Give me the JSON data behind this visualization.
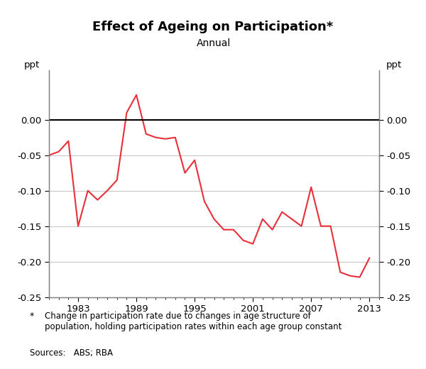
{
  "title": "Effect of Ageing on Participation*",
  "subtitle": "Annual",
  "line_color": "#e8303a",
  "line_width": 1.5,
  "background_color": "#ffffff",
  "ylim": [
    -0.25,
    0.07
  ],
  "yticks": [
    -0.25,
    -0.2,
    -0.15,
    -0.1,
    -0.05,
    0.0
  ],
  "xmin": 1980,
  "xmax": 2014,
  "xticks": [
    1983,
    1989,
    1995,
    2001,
    2007,
    2013
  ],
  "years": [
    1980,
    1981,
    1982,
    1983,
    1984,
    1985,
    1986,
    1987,
    1988,
    1989,
    1990,
    1991,
    1992,
    1993,
    1994,
    1995,
    1996,
    1997,
    1998,
    1999,
    2000,
    2001,
    2002,
    2003,
    2004,
    2005,
    2006,
    2007,
    2008,
    2009,
    2010,
    2011,
    2012,
    2013
  ],
  "values": [
    -0.05,
    -0.045,
    -0.03,
    -0.15,
    -0.1,
    -0.113,
    -0.1,
    -0.085,
    0.01,
    0.035,
    -0.02,
    -0.025,
    -0.027,
    -0.025,
    -0.075,
    -0.057,
    -0.115,
    -0.14,
    -0.155,
    -0.155,
    -0.17,
    -0.175,
    -0.14,
    -0.155,
    -0.13,
    -0.14,
    -0.15,
    -0.095,
    -0.15,
    -0.15,
    -0.215,
    -0.22,
    -0.222,
    -0.195
  ],
  "spine_color": "#808080",
  "grid_color": "#c8c8c8",
  "zero_line_color": "#000000",
  "tick_label_fontsize": 9.5,
  "footnote_text": "Change in participation rate due to changes in age structure of\npopulation, holding participation rates within each age group constant",
  "sources_text": "Sources:   ABS; RBA"
}
